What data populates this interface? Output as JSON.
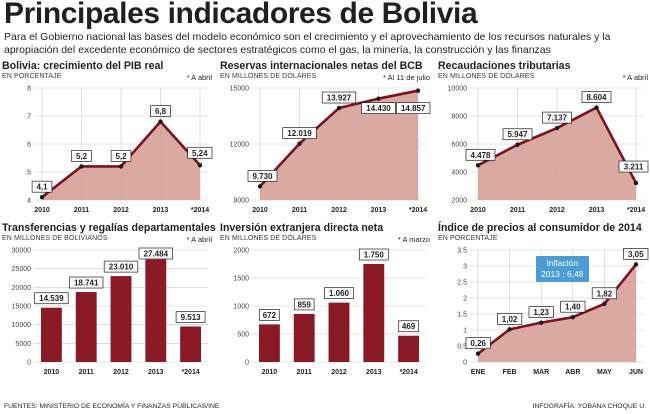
{
  "title": "Principales indicadores de Bolivia",
  "intro": "Para el Gobierno nacional las bases del modelo económico son el crecimiento y el aprovechamiento de los recursos naturales y la apropiación del excedente económico de sectores estratégicos como el gas, la minería, la construcción y las finanzas",
  "footer": {
    "source": "FUENTES: MINISTERIO DE ECONOMÍA Y FINANZAS PÚBLICAS/INE",
    "credit": "INFOGRAFÍA: YOBANA CHOQUE U."
  },
  "colors": {
    "line": "#7a1220",
    "area": "#d6a198",
    "bar": "#8a1a26",
    "grid": "#c8c8c8",
    "callout": "#4a9bd6"
  },
  "chart_data": [
    {
      "type": "area",
      "title": "Bolivia: crecimiento del PIB real",
      "unit_label": "EN PORCENTAJE",
      "note": "* A abril",
      "categories": [
        "2010",
        "2011",
        "2012",
        "2013",
        "*2014"
      ],
      "values": [
        4.1,
        5.2,
        5.2,
        6.8,
        5.24
      ],
      "value_labels": [
        "4,1",
        "5,2",
        "5,2",
        "6,8",
        "5,24"
      ],
      "ylim": [
        4,
        8
      ],
      "yticks": [
        4,
        5,
        6,
        7,
        8
      ],
      "ytick_labels": [
        "4",
        "5",
        "6",
        "7",
        "8"
      ],
      "grid": true
    },
    {
      "type": "area",
      "title": "Reservas internacionales netas del BCB",
      "unit_label": "EN MILLONES DE DÓLARES",
      "note": "* Al 11 de julio",
      "categories": [
        "2010",
        "2011",
        "2012",
        "2013",
        "*2014"
      ],
      "values": [
        9730,
        12019,
        13927,
        14430,
        14857
      ],
      "value_labels": [
        "9.730",
        "12.019",
        "13.927",
        "14.430",
        "14.857"
      ],
      "ylim": [
        9000,
        15000
      ],
      "yticks": [
        9000,
        12000,
        15000
      ],
      "ytick_labels": [
        "9000",
        "12000",
        "15000"
      ],
      "grid": true
    },
    {
      "type": "area",
      "title": "Recaudaciones tributarias",
      "unit_label": "EN MILLONES DE DÓLARES",
      "note": "* A abril",
      "categories": [
        "2010",
        "2011",
        "2012",
        "2013",
        "*2014"
      ],
      "values": [
        4478,
        5947,
        7137,
        8604,
        3211
      ],
      "value_labels": [
        "4.478",
        "5.947",
        "7.137",
        "8.604",
        "3.211"
      ],
      "ylim": [
        2000,
        10000
      ],
      "yticks": [
        2000,
        4000,
        6000,
        8000,
        10000
      ],
      "ytick_labels": [
        "2000",
        "4000",
        "6000",
        "8000",
        "10000"
      ],
      "grid": true
    },
    {
      "type": "bar",
      "title": "Transferencias y regalías departamentales",
      "unit_label": "EN MILLONES DE BOLIVIANOS",
      "note": "* A abril",
      "categories": [
        "2010",
        "2011",
        "2012",
        "2013",
        "*2014"
      ],
      "values": [
        14539,
        18741,
        23010,
        27484,
        9513
      ],
      "value_labels": [
        "14.539",
        "18.741",
        "23.010",
        "27.484",
        "9.513"
      ],
      "ylim": [
        0,
        30000
      ],
      "yticks": [
        0,
        5000,
        10000,
        15000,
        20000,
        25000,
        30000
      ],
      "ytick_labels": [
        "0",
        "5000",
        "10000",
        "15000",
        "20000",
        "25000",
        "30000"
      ],
      "grid": true
    },
    {
      "type": "bar",
      "title": "Inversión extranjera directa neta",
      "unit_label": "EN MILLONES DE DÓLARES",
      "note": "* A marzo",
      "categories": [
        "2010",
        "2011",
        "2012",
        "2013",
        "*2014"
      ],
      "values": [
        672,
        859,
        1060,
        1750,
        469
      ],
      "value_labels": [
        "672",
        "859",
        "1.060",
        "1.750",
        "469"
      ],
      "ylim": [
        0,
        2000
      ],
      "yticks": [
        0,
        500,
        1000,
        1500,
        2000
      ],
      "ytick_labels": [
        "0",
        "500",
        "1000",
        "1500",
        "2000"
      ],
      "grid": true
    },
    {
      "type": "area",
      "title": "Índice de precios al consumidor de 2014",
      "unit_label": "EN PORCENTAJE",
      "note": "",
      "categories": [
        "ENE",
        "FEB",
        "MAR",
        "ABR",
        "MAY",
        "JUN"
      ],
      "values": [
        0.26,
        1.02,
        1.23,
        1.4,
        1.82,
        3.05
      ],
      "value_labels": [
        "0,26",
        "1,02",
        "1,23",
        "1,40",
        "1,82",
        "3,05"
      ],
      "ylim": [
        0,
        3.5
      ],
      "yticks": [
        0,
        0.5,
        1,
        1.5,
        2,
        2.5,
        3,
        3.5
      ],
      "ytick_labels": [
        "0",
        "0.5",
        "1",
        "1.5",
        "2",
        "2.5",
        "3",
        "3.5"
      ],
      "grid": true,
      "callout": [
        "Inflación",
        "2013 : 6,48"
      ]
    }
  ]
}
